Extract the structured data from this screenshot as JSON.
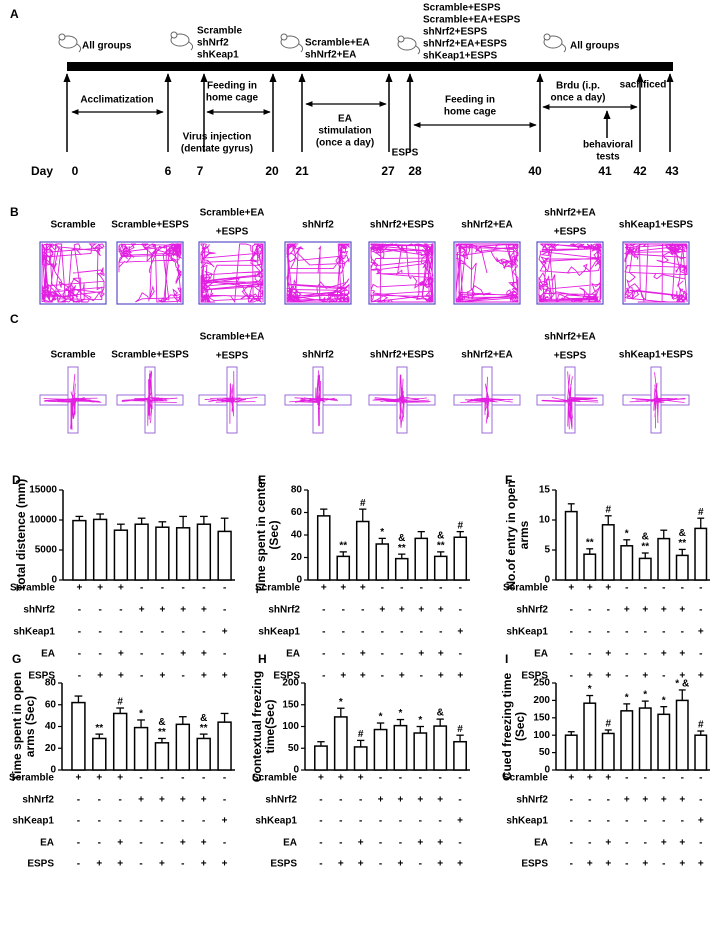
{
  "timeline": {
    "panel": "A",
    "day_label": "Day",
    "days": [
      0,
      6,
      7,
      20,
      21,
      27,
      28,
      40,
      41,
      42,
      43
    ],
    "groups": [
      [
        "All groups"
      ],
      [
        "Scramble",
        "shNrf2",
        "shKeap1"
      ],
      [
        "Scramble+EA",
        "shNrf2+EA"
      ],
      [
        "Scramble+ESPS",
        "Scramble+EA+ESPS",
        "shNrf2+ESPS",
        "shNrf2+EA+ESPS",
        "shKeap1+ESPS"
      ],
      [
        "All groups"
      ]
    ],
    "phases": [
      [
        "Acclimatization"
      ],
      [
        "Feeding in",
        "home cage"
      ],
      [
        "Virus injection",
        "(dentate gyrus)"
      ],
      [
        "EA",
        "stimulation",
        "(once a day)"
      ],
      [
        "ESPS"
      ],
      [
        "Feeding in",
        "home cage"
      ],
      [
        "Brdu (i.p.",
        "once a day)"
      ],
      [
        "behavioral",
        "tests"
      ],
      [
        "sacrificed"
      ]
    ]
  },
  "open_field": {
    "panel": "B",
    "groups": [
      [
        "Scramble"
      ],
      [
        "Scramble+ESPS"
      ],
      [
        "Scramble+EA",
        "+ESPS"
      ],
      [
        "shNrf2"
      ],
      [
        "shNrf2+ESPS"
      ],
      [
        "shNrf2+EA"
      ],
      [
        "shNrf2+EA",
        "+ESPS"
      ],
      [
        "shKeap1+ESPS"
      ]
    ]
  },
  "plus_maze": {
    "panel": "C",
    "groups": [
      [
        "Scramble"
      ],
      [
        "Scramble+ESPS"
      ],
      [
        "Scramble+EA",
        "+ESPS"
      ],
      [
        "shNrf2"
      ],
      [
        "shNrf2+ESPS"
      ],
      [
        "shNrf2+EA"
      ],
      [
        "shNrf2+EA",
        "+ESPS"
      ],
      [
        "shKeap1+ESPS"
      ]
    ]
  },
  "chart_data": [
    {
      "type": "bar",
      "panel": "D",
      "ylabel": [
        "Total distence (mm)"
      ],
      "color": "#ffffff",
      "values": [
        9900,
        10100,
        8300,
        9300,
        8800,
        8700,
        9300,
        8100
      ],
      "errors": [
        700,
        900,
        1000,
        1000,
        900,
        1900,
        1300,
        2200
      ],
      "annotations": [
        null,
        null,
        null,
        null,
        null,
        null,
        null,
        null
      ],
      "ylim": [
        0,
        15000
      ],
      "yticks": [
        0,
        5000,
        10000,
        15000
      ],
      "row_labels": [
        "Scramble",
        "shNrf2",
        "shKeap1",
        "EA",
        "ESPS"
      ],
      "rows": [
        [
          "+",
          "+",
          "+",
          "-",
          "-",
          "-",
          "-",
          "-"
        ],
        [
          "-",
          "-",
          "-",
          "+",
          "+",
          "+",
          "+",
          "-"
        ],
        [
          "-",
          "-",
          "-",
          "-",
          "-",
          "-",
          "-",
          "+"
        ],
        [
          "-",
          "-",
          "+",
          "-",
          "-",
          "+",
          "+",
          "-"
        ],
        [
          "-",
          "+",
          "+",
          "-",
          "+",
          "-",
          "+",
          "+"
        ]
      ]
    },
    {
      "type": "bar",
      "panel": "E",
      "ylabel": [
        "Time spent in center",
        "(Sec)"
      ],
      "color": "#ffffff",
      "values": [
        57,
        21,
        52,
        32,
        19,
        37,
        21,
        38
      ],
      "errors": [
        6,
        4,
        11,
        5,
        4,
        6,
        4,
        5
      ],
      "annotations": [
        null,
        [
          "**"
        ],
        [
          "#"
        ],
        [
          "*"
        ],
        [
          "&",
          "**"
        ],
        null,
        [
          "&",
          "**"
        ],
        [
          "#"
        ]
      ],
      "ylim": [
        0,
        80
      ],
      "yticks": [
        0,
        20,
        40,
        60,
        80
      ],
      "row_labels": [
        "Scramble",
        "shNrf2",
        "shKeap1",
        "EA",
        "ESPS"
      ],
      "rows": [
        [
          "+",
          "+",
          "+",
          "-",
          "-",
          "-",
          "-",
          "-"
        ],
        [
          "-",
          "-",
          "-",
          "+",
          "+",
          "+",
          "+",
          "-"
        ],
        [
          "-",
          "-",
          "-",
          "-",
          "-",
          "-",
          "-",
          "+"
        ],
        [
          "-",
          "-",
          "+",
          "-",
          "-",
          "+",
          "+",
          "-"
        ],
        [
          "-",
          "+",
          "+",
          "-",
          "+",
          "-",
          "+",
          "+"
        ]
      ]
    },
    {
      "type": "bar",
      "panel": "F",
      "ylabel": [
        "No.of entry in open",
        "arms"
      ],
      "color": "#ffffff",
      "values": [
        11.4,
        4.3,
        9.2,
        5.7,
        3.6,
        6.9,
        4.1,
        8.6
      ],
      "errors": [
        1.3,
        0.9,
        1.5,
        1,
        0.9,
        1.4,
        1,
        1.7
      ],
      "annotations": [
        null,
        [
          "**"
        ],
        [
          "#"
        ],
        [
          "*"
        ],
        [
          "&",
          "**"
        ],
        null,
        [
          "&",
          "**"
        ],
        [
          "#"
        ]
      ],
      "ylim": [
        0,
        15
      ],
      "yticks": [
        0,
        5,
        10,
        15
      ],
      "row_labels": [
        "Scramble",
        "shNrf2",
        "shKeap1",
        "EA",
        "ESPS"
      ],
      "rows": [
        [
          "+",
          "+",
          "+",
          "-",
          "-",
          "-",
          "-",
          "-"
        ],
        [
          "-",
          "-",
          "-",
          "+",
          "+",
          "+",
          "+",
          "-"
        ],
        [
          "-",
          "-",
          "-",
          "-",
          "-",
          "-",
          "-",
          "+"
        ],
        [
          "-",
          "-",
          "+",
          "-",
          "-",
          "+",
          "+",
          "-"
        ],
        [
          "-",
          "+",
          "+",
          "-",
          "+",
          "-",
          "+",
          "+"
        ]
      ]
    },
    {
      "type": "bar",
      "panel": "G",
      "ylabel": [
        "Time spent in open",
        "arms (Sec)"
      ],
      "color": "#ffffff",
      "values": [
        62,
        29,
        52,
        39,
        25,
        42,
        29,
        44
      ],
      "errors": [
        6,
        4,
        5,
        7,
        4,
        7,
        4,
        8
      ],
      "annotations": [
        null,
        [
          "**"
        ],
        [
          "#"
        ],
        [
          "*"
        ],
        [
          "&",
          "**"
        ],
        null,
        [
          "&",
          "**"
        ],
        null
      ],
      "ylim": [
        0,
        80
      ],
      "yticks": [
        0,
        20,
        40,
        60,
        80
      ],
      "row_labels": [
        "Scramble",
        "shNrf2",
        "shKeap1",
        "EA",
        "ESPS"
      ],
      "rows": [
        [
          "+",
          "+",
          "+",
          "-",
          "-",
          "-",
          "-",
          "-"
        ],
        [
          "-",
          "-",
          "-",
          "+",
          "+",
          "+",
          "+",
          "-"
        ],
        [
          "-",
          "-",
          "-",
          "-",
          "-",
          "-",
          "-",
          "+"
        ],
        [
          "-",
          "-",
          "+",
          "-",
          "-",
          "+",
          "+",
          "-"
        ],
        [
          "-",
          "+",
          "+",
          "-",
          "+",
          "-",
          "+",
          "+"
        ]
      ]
    },
    {
      "type": "bar",
      "panel": "H",
      "ylabel": [
        "Contextual freezing",
        "time(Sec)"
      ],
      "color": "#ffffff",
      "values": [
        55,
        122,
        53,
        93,
        102,
        85,
        101,
        65
      ],
      "errors": [
        10,
        20,
        15,
        15,
        14,
        15,
        16,
        15
      ],
      "annotations": [
        null,
        [
          "*"
        ],
        [
          "#"
        ],
        [
          "*"
        ],
        [
          "*"
        ],
        [
          "*"
        ],
        [
          "&"
        ],
        [
          "#"
        ]
      ],
      "ylim": [
        0,
        200
      ],
      "yticks": [
        0,
        50,
        100,
        150,
        200
      ],
      "row_labels": [
        "Scramble",
        "shNrf2",
        "shKeap1",
        "EA",
        "ESPS"
      ],
      "rows": [
        [
          "+",
          "+",
          "+",
          "-",
          "-",
          "-",
          "-",
          "-"
        ],
        [
          "-",
          "-",
          "-",
          "+",
          "+",
          "+",
          "+",
          "-"
        ],
        [
          "-",
          "-",
          "-",
          "-",
          "-",
          "-",
          "-",
          "+"
        ],
        [
          "-",
          "-",
          "+",
          "-",
          "-",
          "+",
          "+",
          "-"
        ],
        [
          "-",
          "+",
          "+",
          "-",
          "+",
          "-",
          "+",
          "+"
        ]
      ]
    },
    {
      "type": "bar",
      "panel": "I",
      "ylabel": [
        "Cued freezing time",
        "(Sec)"
      ],
      "color": "#ffffff",
      "values": [
        100,
        192,
        105,
        170,
        178,
        160,
        200,
        100
      ],
      "errors": [
        10,
        22,
        10,
        20,
        20,
        22,
        30,
        12
      ],
      "annotations": [
        null,
        [
          "*"
        ],
        [
          "#"
        ],
        [
          "*"
        ],
        [
          "*"
        ],
        [
          "*"
        ],
        [
          "* &"
        ],
        [
          "#"
        ]
      ],
      "ylim": [
        0,
        250
      ],
      "yticks": [
        0,
        50,
        100,
        150,
        200,
        250
      ],
      "row_labels": [
        "Scramble",
        "shNrf2",
        "shKeap1",
        "EA",
        "ESPS"
      ],
      "rows": [
        [
          "+",
          "+",
          "+",
          "-",
          "-",
          "-",
          "-",
          "-"
        ],
        [
          "-",
          "-",
          "-",
          "+",
          "+",
          "+",
          "+",
          "-"
        ],
        [
          "-",
          "-",
          "-",
          "-",
          "-",
          "-",
          "-",
          "+"
        ],
        [
          "-",
          "-",
          "+",
          "-",
          "-",
          "+",
          "+",
          "-"
        ],
        [
          "-",
          "+",
          "+",
          "-",
          "+",
          "-",
          "+",
          "+"
        ]
      ]
    }
  ]
}
